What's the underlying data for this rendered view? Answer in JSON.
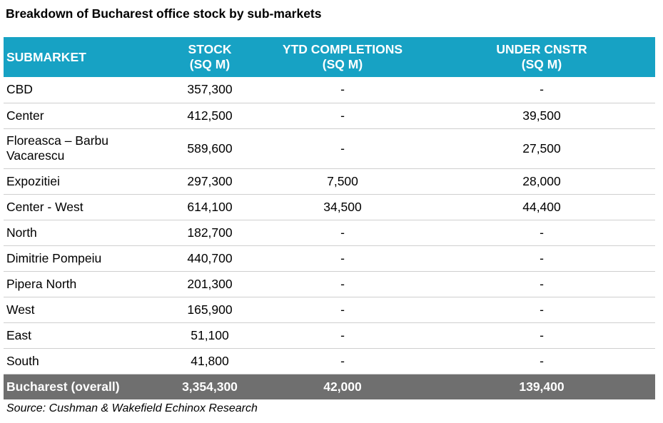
{
  "title": "Breakdown of Bucharest office stock by sub-markets",
  "header": {
    "submarket": "SUBMARKET",
    "stock_line1": "STOCK",
    "stock_line2": "(SQ M)",
    "ytd_line1": "YTD COMPLETIONS",
    "ytd_line2": "(SQ M)",
    "under_line1": "UNDER CNSTR",
    "under_line2": "(SQ M)"
  },
  "rows": [
    {
      "submarket": "CBD",
      "stock": "357,300",
      "ytd": "-",
      "under": "-"
    },
    {
      "submarket": "Center",
      "stock": "412,500",
      "ytd": "-",
      "under": "39,500"
    },
    {
      "submarket_line1": "Floreasca – Barbu",
      "submarket_line2": "Vacarescu",
      "stock": "589,600",
      "ytd": "-",
      "under": "27,500"
    },
    {
      "submarket": "Expozitiei",
      "stock": "297,300",
      "ytd": "7,500",
      "under": "28,000"
    },
    {
      "submarket": "Center - West",
      "stock": "614,100",
      "ytd": "34,500",
      "under": "44,400"
    },
    {
      "submarket": "North",
      "stock": "182,700",
      "ytd": "-",
      "under": "-"
    },
    {
      "submarket": "Dimitrie Pompeiu",
      "stock": "440,700",
      "ytd": "-",
      "under": "-"
    },
    {
      "submarket": "Pipera North",
      "stock": "201,300",
      "ytd": "-",
      "under": "-"
    },
    {
      "submarket": "West",
      "stock": "165,900",
      "ytd": "-",
      "under": "-"
    },
    {
      "submarket": "East",
      "stock": "51,100",
      "ytd": "-",
      "under": "-"
    },
    {
      "submarket": "South",
      "stock": "41,800",
      "ytd": "-",
      "under": "-"
    }
  ],
  "total": {
    "submarket": "Bucharest (overall)",
    "stock": "3,354,300",
    "ytd": "42,000",
    "under": "139,400"
  },
  "source": "Source: Cushman & Wakefield Echinox Research",
  "colors": {
    "header_bg": "#17a2c4",
    "total_bg": "#6f6f6f",
    "row_divider": "#cfcfcf"
  }
}
